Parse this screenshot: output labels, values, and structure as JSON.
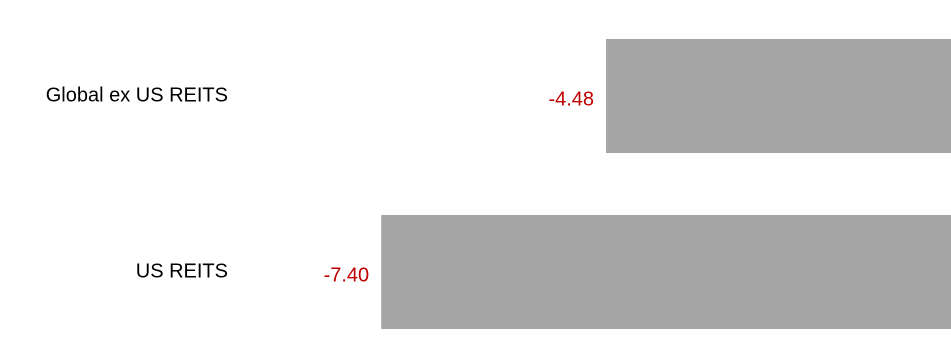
{
  "chart_data": {
    "type": "bar",
    "orientation": "horizontal",
    "categories": [
      "Global ex US REITS",
      "US REITS"
    ],
    "values": [
      -4.48,
      -7.4
    ],
    "value_labels": [
      "-4.48",
      "-7.40"
    ],
    "title": "",
    "xlabel": "",
    "ylabel": "",
    "xlim": [
      -7.4,
      0
    ],
    "grid": false,
    "legend": "none",
    "colors": {
      "bar": "#a6a6a6",
      "value_label": "#c00000",
      "category_label": "#000000"
    }
  }
}
